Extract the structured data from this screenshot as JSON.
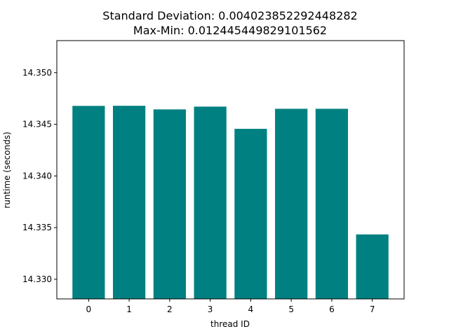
{
  "chart_data": {
    "type": "bar",
    "title": "Standard Deviation: 0.004023852292448282",
    "subtitle": "Max-Min: 0.012445449829101562",
    "xlabel": "thread ID",
    "ylabel": "runtime (seconds)",
    "categories": [
      "0",
      "1",
      "2",
      "3",
      "4",
      "5",
      "6",
      "7"
    ],
    "values": [
      14.34678,
      14.34679,
      14.34644,
      14.34671,
      14.34456,
      14.3465,
      14.3465,
      14.33434
    ],
    "ylim": [
      14.3281,
      14.3531
    ],
    "yticks": [
      14.33,
      14.335,
      14.34,
      14.345,
      14.35
    ],
    "ytick_labels": [
      "14.330",
      "14.335",
      "14.340",
      "14.345",
      "14.350"
    ],
    "bar_color": "#008080",
    "grid": false,
    "legend": "none"
  }
}
